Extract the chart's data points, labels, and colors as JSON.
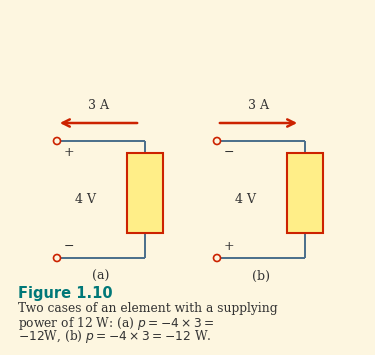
{
  "background_color": "#fdf6e0",
  "wire_color": "#4a6e8a",
  "element_fill": "#ffee88",
  "element_edge": "#cc2200",
  "terminal_color": "#cc2200",
  "arrow_color": "#cc2200",
  "text_color": "#333333",
  "figure_label_color": "#007878",
  "label_a": "(a)",
  "label_b": "(b)",
  "current_label": "3 A",
  "voltage_label": "4 V",
  "figure_label": "Figure 1.10",
  "caption_line1": "Two cases of an element with a supplying",
  "caption_line2": "power of 12 W: (a) $p = -4 \\times 3 =$",
  "caption_line3": "$-12$W, (b) $p = -4 \\times 3 = -12$ W."
}
